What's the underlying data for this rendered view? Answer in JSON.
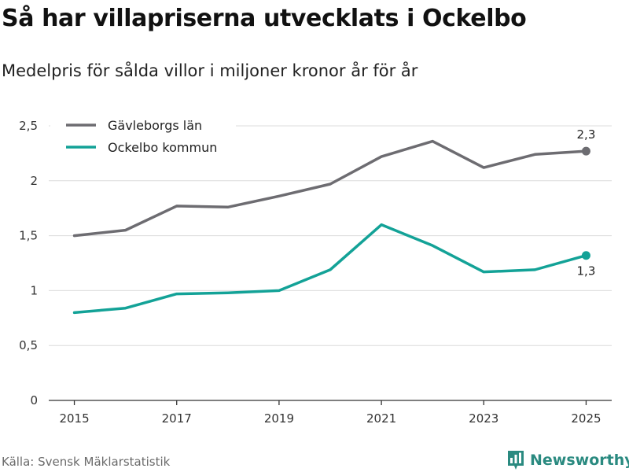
{
  "title": "Så har villapriserna utvecklats i Ockelbo",
  "subtitle": "Medelpris för sålda villor i miljoner kronor år för år",
  "source": "Källa: Svensk Mäklarstatistik",
  "brand": {
    "name": "Newsworthy",
    "icon": "newsworthy-logo-icon",
    "color": "#2a8a80"
  },
  "chart_data": {
    "type": "line",
    "x": [
      2015,
      2016,
      2017,
      2018,
      2019,
      2020,
      2021,
      2022,
      2023,
      2024,
      2025
    ],
    "x_ticks": [
      "2015",
      "2017",
      "2019",
      "2021",
      "2023",
      "2025"
    ],
    "y_ticks": [
      "0",
      "0,5",
      "1",
      "1,5",
      "2",
      "2,5"
    ],
    "ylim": [
      0,
      2.5
    ],
    "grid": true,
    "legend_position": "top-left",
    "series": [
      {
        "name": "Gävleborgs län",
        "color": "#6d6c71",
        "values": [
          1.5,
          1.55,
          1.77,
          1.76,
          1.86,
          1.97,
          2.22,
          2.36,
          2.12,
          2.24,
          2.27
        ],
        "end_label": "2,3"
      },
      {
        "name": "Ockelbo kommun",
        "color": "#13a297",
        "values": [
          0.8,
          0.84,
          0.97,
          0.98,
          1.0,
          1.19,
          1.6,
          1.41,
          1.17,
          1.19,
          1.32
        ],
        "end_label": "1,3"
      }
    ]
  }
}
